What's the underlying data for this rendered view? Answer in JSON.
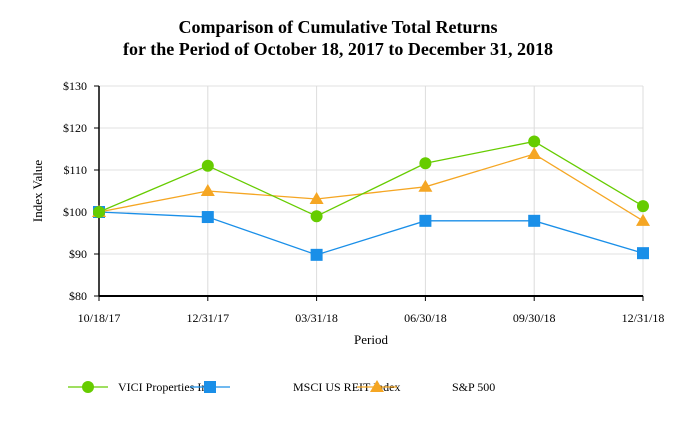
{
  "chart_data": {
    "type": "line",
    "title": [
      "Comparison of Cumulative Total Returns",
      "for the Period of October 18, 2017 to December 31, 2018"
    ],
    "xlabel": "Period",
    "ylabel": "Index Value",
    "categories": [
      "10/18/17",
      "12/31/17",
      "03/31/18",
      "06/30/18",
      "09/30/18",
      "12/31/18"
    ],
    "ylim": [
      80,
      130
    ],
    "yticks": [
      80,
      90,
      100,
      110,
      120,
      130
    ],
    "ytick_labels": [
      "$80",
      "$90",
      "$100",
      "$110",
      "$120",
      "$130"
    ],
    "grid": true,
    "legend_placement": "bottom",
    "series": [
      {
        "name": "VICI Properties Inc",
        "color": "#66cc00",
        "marker": "circle",
        "values": [
          100,
          111,
          99,
          111.6,
          116.8,
          101.4
        ]
      },
      {
        "name": "MSCI US REIT Index",
        "color": "#1a8fe8",
        "marker": "square",
        "values": [
          100,
          98.8,
          89.8,
          97.9,
          97.9,
          90.2
        ]
      },
      {
        "name": "S&P 500",
        "color": "#f5a623",
        "marker": "triangle",
        "values": [
          100,
          105,
          103.1,
          106,
          113.8,
          97.9
        ]
      }
    ]
  }
}
